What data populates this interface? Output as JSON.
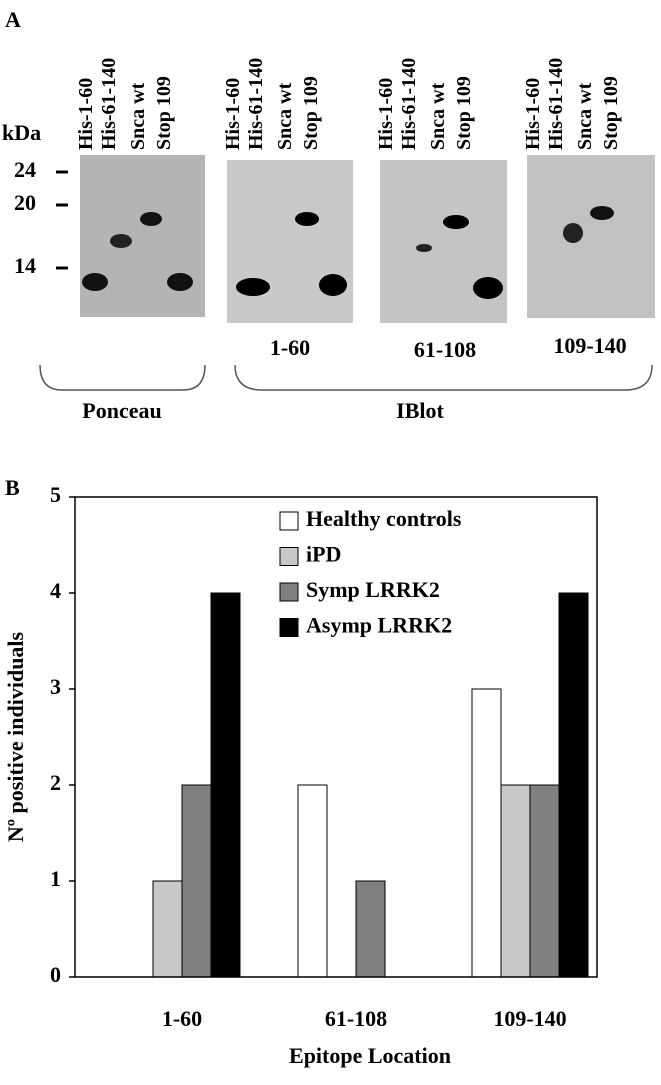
{
  "panel_a": {
    "label": "A",
    "kda_label": "kDa",
    "markers": [
      "24",
      "20",
      "14"
    ],
    "blots": [
      {
        "lanes": [
          "His-1-60",
          "His-61-140",
          "Snca wt",
          "Stop 109"
        ]
      },
      {
        "lanes": [
          "His-1-60",
          "His-61-140",
          "Snca wt",
          "Stop 109"
        ]
      },
      {
        "lanes": [
          "His-1-60",
          "His-61-140",
          "Snca wt",
          "Stop 109"
        ]
      },
      {
        "lanes": [
          "His-1-60",
          "His-61-140",
          "Snca wt",
          "Stop 109"
        ]
      }
    ],
    "epitopes": [
      "1-60",
      "61-108",
      "109-140"
    ],
    "groups": [
      "Ponceau",
      "IBlot"
    ]
  },
  "chart_data": {
    "type": "bar",
    "panel_label": "B",
    "x_label": "Epitope Location",
    "y_label": "Nº positive individuals",
    "categories": [
      "1-60",
      "61-108",
      "109-140"
    ],
    "series": [
      {
        "name": "Healthy controls",
        "color": "#ffffff",
        "values": [
          0,
          2,
          3
        ]
      },
      {
        "name": "iPD",
        "color": "#c8c8c8",
        "values": [
          1,
          0,
          2
        ]
      },
      {
        "name": "Symp LRRK2",
        "color": "#808080",
        "values": [
          2,
          1,
          2
        ]
      },
      {
        "name": "Asymp LRRK2",
        "color": "#000000",
        "values": [
          4,
          0,
          4
        ]
      }
    ],
    "ylim": [
      0,
      5
    ],
    "yticks": [
      0,
      1,
      2,
      3,
      4,
      5
    ],
    "grid": false,
    "legend": "top-right"
  }
}
